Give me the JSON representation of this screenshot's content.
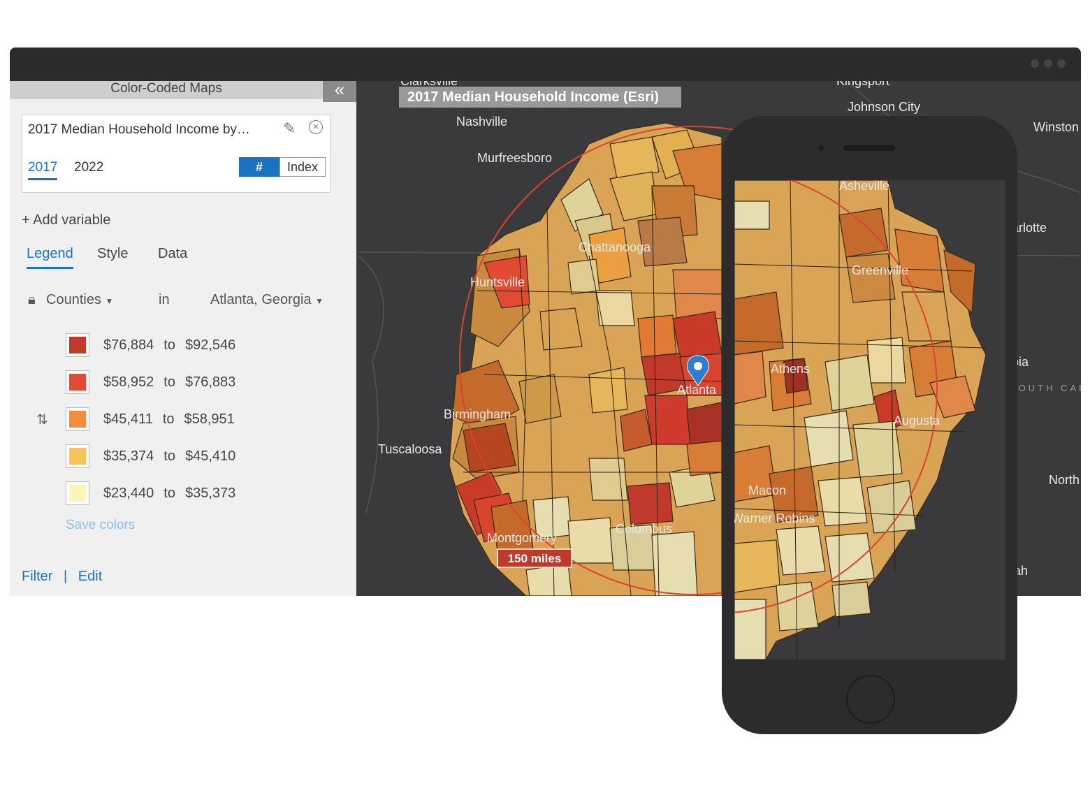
{
  "panel": {
    "header_title": "Color-Coded Maps",
    "collapse_glyph": "«",
    "variable_title": "2017 Median Household Income by…",
    "years": [
      "2017",
      "2022"
    ],
    "toggle_hash": "#",
    "toggle_index": "Index",
    "add_variable": "+ Add variable",
    "tabs": [
      "Legend",
      "Style",
      "Data"
    ],
    "geo_level": "Counties",
    "geo_in": "in",
    "geo_area": "Atlanta, Georgia",
    "legend": [
      {
        "from": "$76,884",
        "to_word": "to",
        "to": "$92,546",
        "color": "#c0392b"
      },
      {
        "from": "$58,952",
        "to_word": "to",
        "to": "$76,883",
        "color": "#e34a33"
      },
      {
        "from": "$45,411",
        "to_word": "to",
        "to": "$58,951",
        "color": "#f08c3c"
      },
      {
        "from": "$35,374",
        "to_word": "to",
        "to": "$45,410",
        "color": "#f8c45a"
      },
      {
        "from": "$23,440",
        "to_word": "to",
        "to": "$35,373",
        "color": "#fdf6b8"
      }
    ],
    "save_colors": "Save colors",
    "footer": {
      "filter": "Filter",
      "separator": "|",
      "edit": "Edit"
    }
  },
  "map": {
    "title": "2017 Median Household Income (Esri)",
    "radius_label": "150 miles",
    "city_labels": {
      "clarksville": "Clarksville",
      "kingsport": "Kingsport",
      "nashville": "Nashville",
      "johnson_city": "Johnson City",
      "winston": "Winston",
      "murfreesboro": "Murfreesboro",
      "asheville": "Asheville",
      "charlotte": "Charlotte",
      "chattanooga": "Chattanooga",
      "greenville": "Greenville",
      "huntsville": "Huntsville",
      "athens": "Athens",
      "columbia": "Columbia",
      "atlanta": "Atlanta",
      "south_carolina": "SOUTH CAROLINA",
      "birmingham": "Birmingham",
      "augusta": "Augusta",
      "tuscaloosa": "Tuscaloosa",
      "north": "North",
      "macon": "Macon",
      "warner_robins": "Warner Robins",
      "montgomery": "Montgomery",
      "columbus": "Columbus",
      "savannah": "Savannah"
    }
  },
  "icons": [
    "pencil-icon",
    "close-circle-icon",
    "chevron-double-left-icon",
    "lock-icon",
    "caret-down-icon",
    "sort-icon",
    "map-pin-icon"
  ]
}
